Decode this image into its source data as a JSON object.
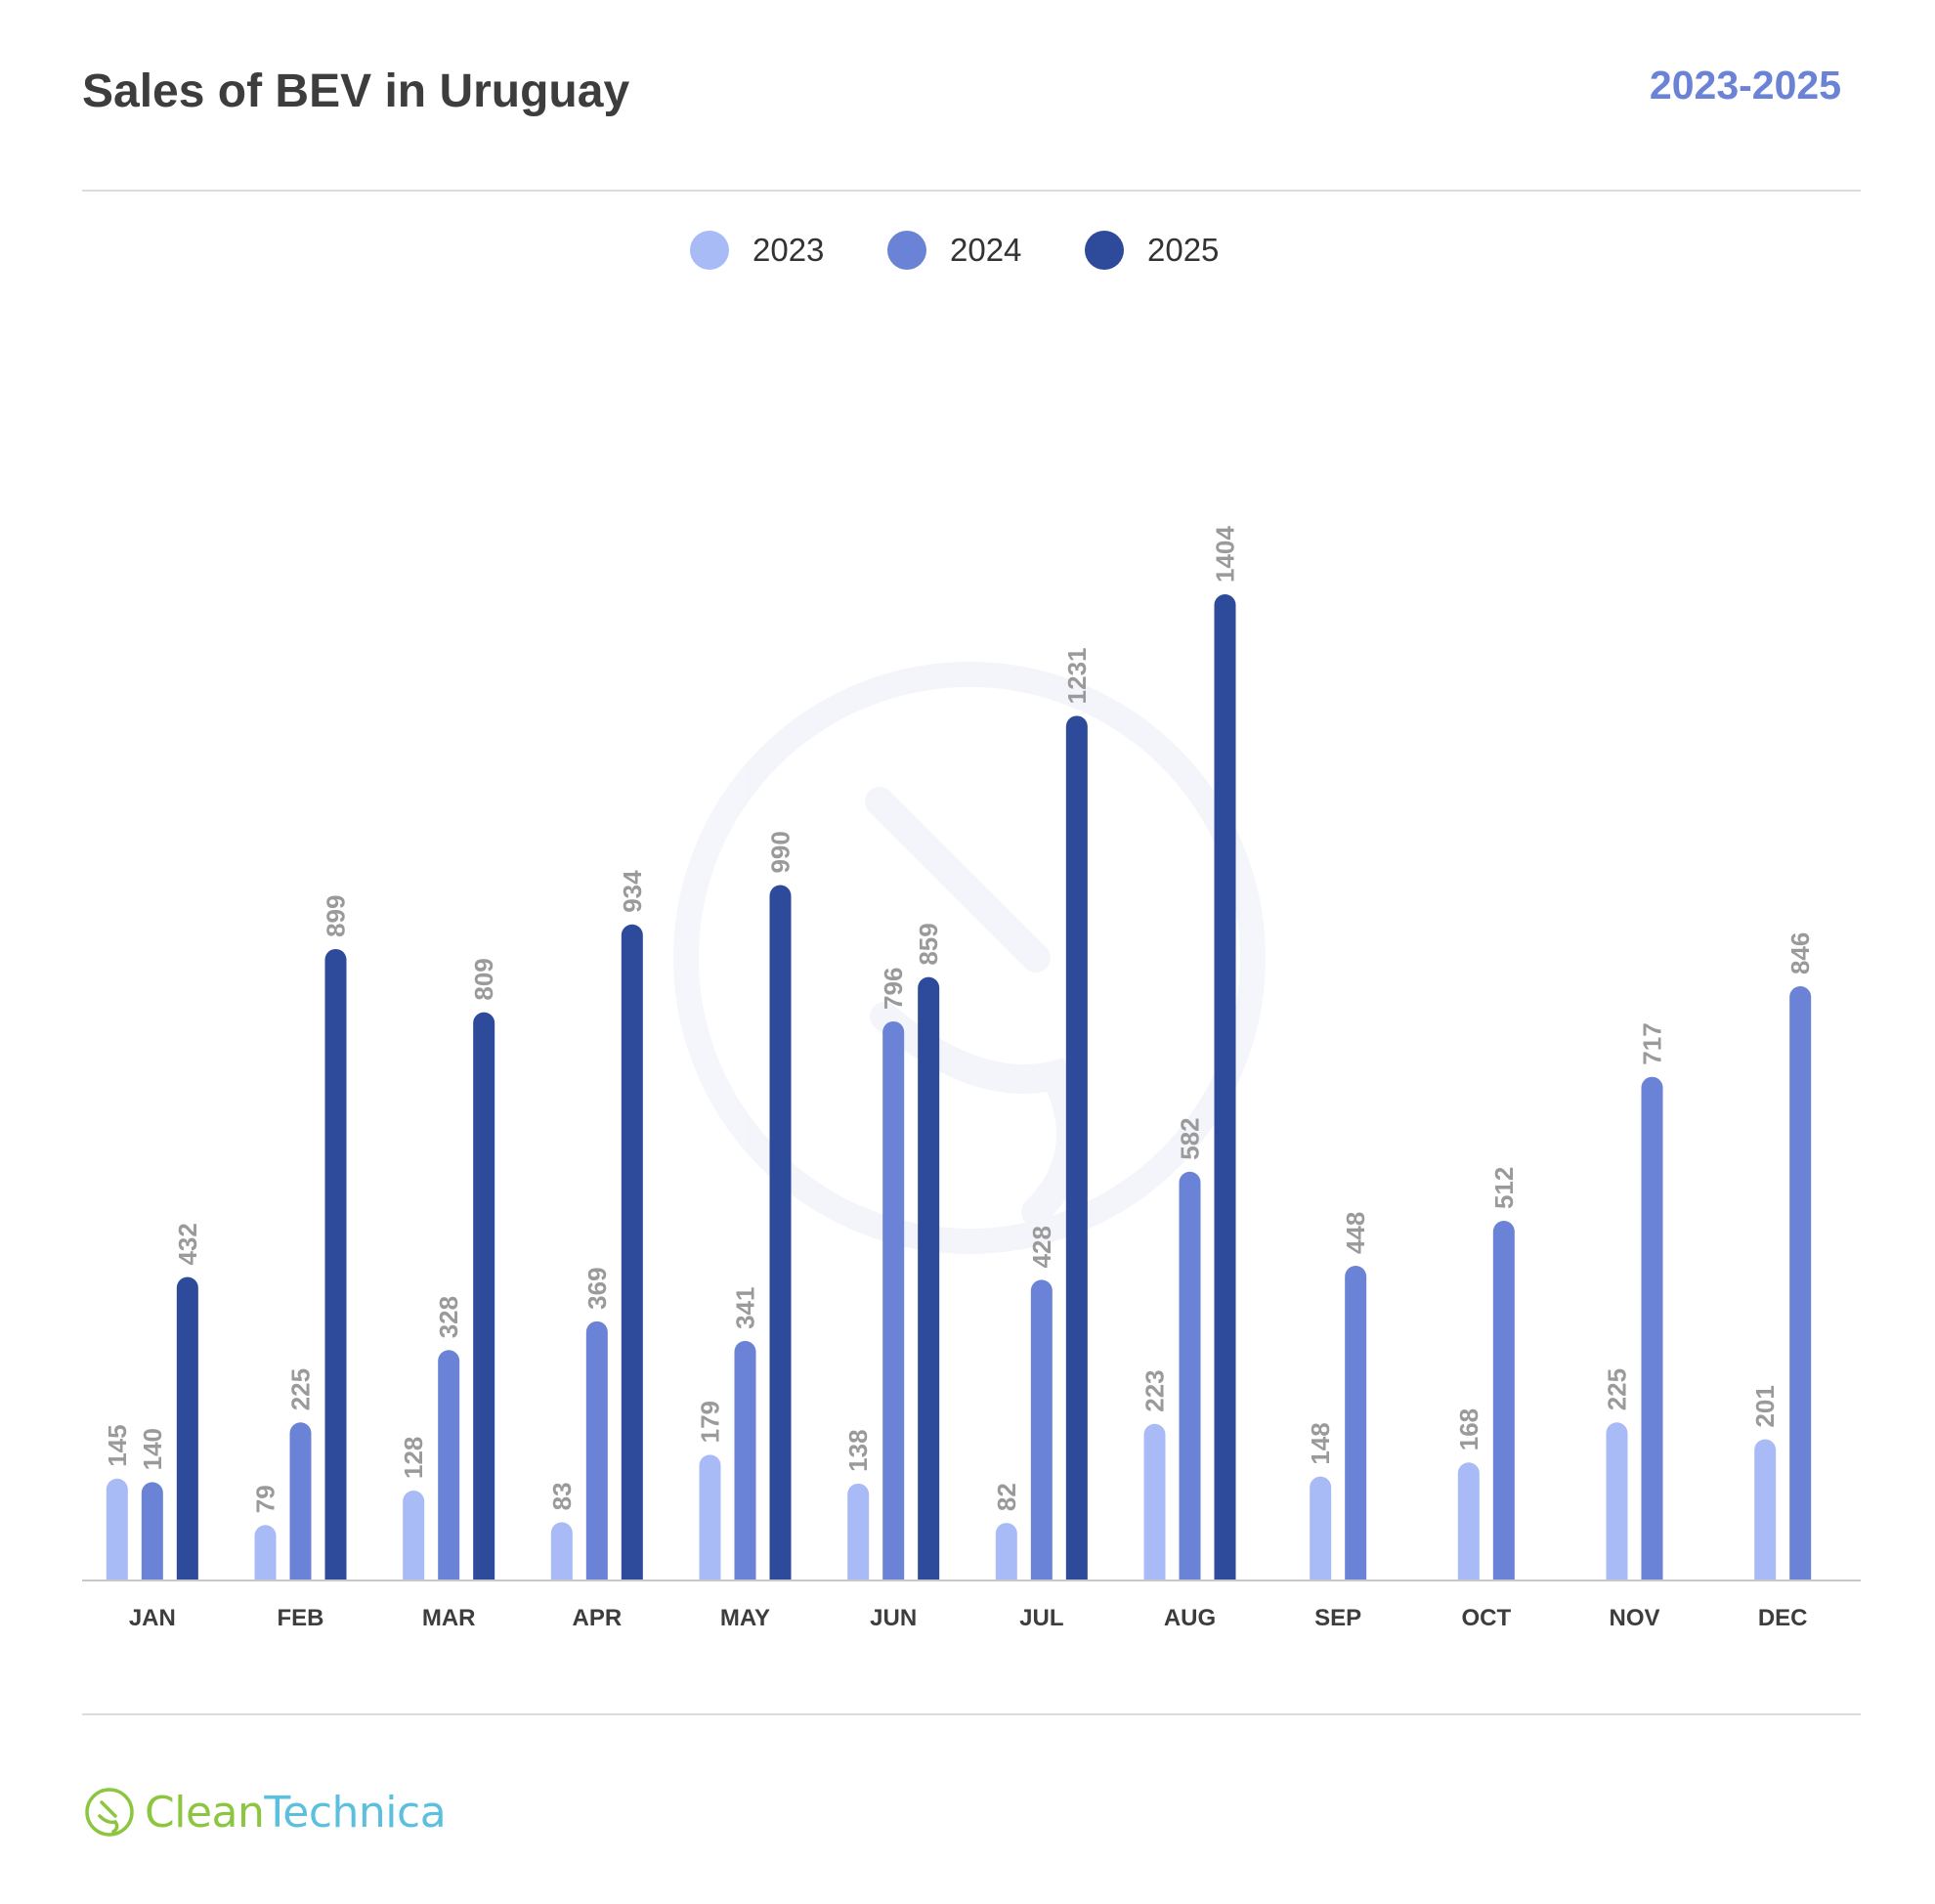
{
  "header": {
    "title": "Sales of BEV in Uruguay",
    "range": "2023-2025"
  },
  "logo": {
    "clean": "Clean",
    "technica": "Technica"
  },
  "colors": {
    "s2023": "#a9bbf7",
    "s2024": "#6b83d6",
    "s2025": "#2d4a9b",
    "value_label": "#9a9a9a",
    "axis_label": "#3d3d3d"
  },
  "chart_data": {
    "type": "bar",
    "title": "Sales of BEV in Uruguay",
    "subtitle": "2023-2025",
    "categories": [
      "JAN",
      "FEB",
      "MAR",
      "APR",
      "MAY",
      "JUN",
      "JUL",
      "AUG",
      "SEP",
      "OCT",
      "NOV",
      "DEC"
    ],
    "series": [
      {
        "name": "2023",
        "values": [
          145,
          79,
          128,
          83,
          179,
          138,
          82,
          223,
          148,
          168,
          225,
          201
        ]
      },
      {
        "name": "2024",
        "values": [
          140,
          225,
          328,
          369,
          341,
          796,
          428,
          582,
          448,
          512,
          717,
          846
        ]
      },
      {
        "name": "2025",
        "values": [
          432,
          899,
          809,
          934,
          990,
          859,
          1231,
          1404,
          null,
          null,
          null,
          null
        ]
      }
    ],
    "xlabel": "",
    "ylabel": "",
    "ylim": [
      0,
      1550
    ],
    "grid": false,
    "legend": "top-center",
    "data_labels": true
  }
}
